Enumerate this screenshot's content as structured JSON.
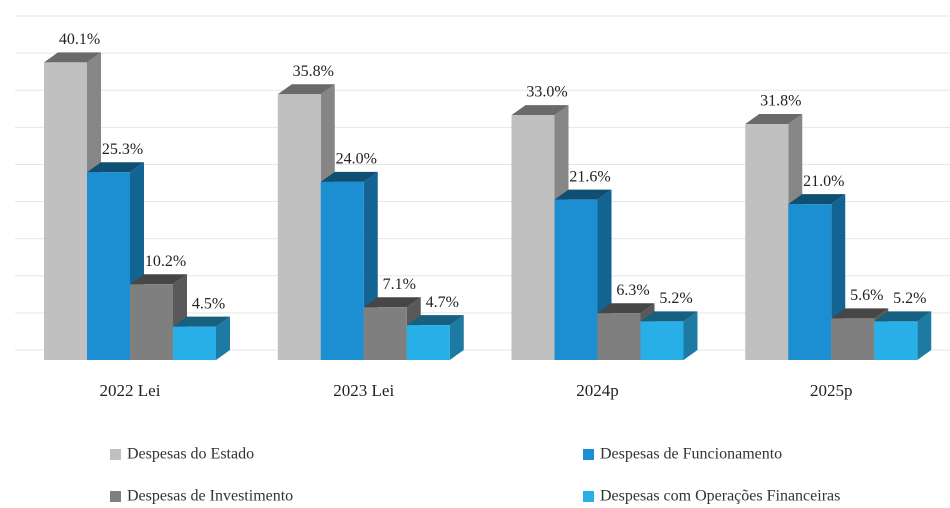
{
  "chart_data": {
    "type": "bar",
    "categories": [
      "2022 Lei",
      "2023 Lei",
      "2024p",
      "2025p"
    ],
    "series": [
      {
        "name": "Despesas do Estado",
        "color": "#c1c0c0",
        "values": [
          40.1,
          35.8,
          33.0,
          31.8
        ],
        "value_labels": [
          "40.1%",
          "35.8%",
          "33.0%",
          "31.8%"
        ]
      },
      {
        "name": "Despesas de Funcionamento",
        "color": "#1b8fd1",
        "values": [
          25.3,
          24.0,
          21.6,
          21.0
        ],
        "value_labels": [
          "25.3%",
          "24.0%",
          "21.6%",
          "21.0%"
        ]
      },
      {
        "name": "Despesas de Investimento",
        "color": "#7f7f7f",
        "values": [
          10.2,
          7.1,
          6.3,
          5.6
        ],
        "value_labels": [
          "10.2%",
          "7.1%",
          "6.3%",
          "5.6%"
        ]
      },
      {
        "name": "Despesas com Operações Financeiras",
        "color": "#29afe8",
        "values": [
          4.5,
          4.7,
          5.2,
          5.2
        ],
        "value_labels": [
          "4.5%",
          "4.7%",
          "5.2%",
          "5.2%"
        ]
      }
    ],
    "ylim": [
      0,
      45
    ],
    "yticks": [
      0,
      5,
      10,
      15,
      20,
      25,
      30,
      35,
      40,
      45
    ],
    "grid": true
  }
}
